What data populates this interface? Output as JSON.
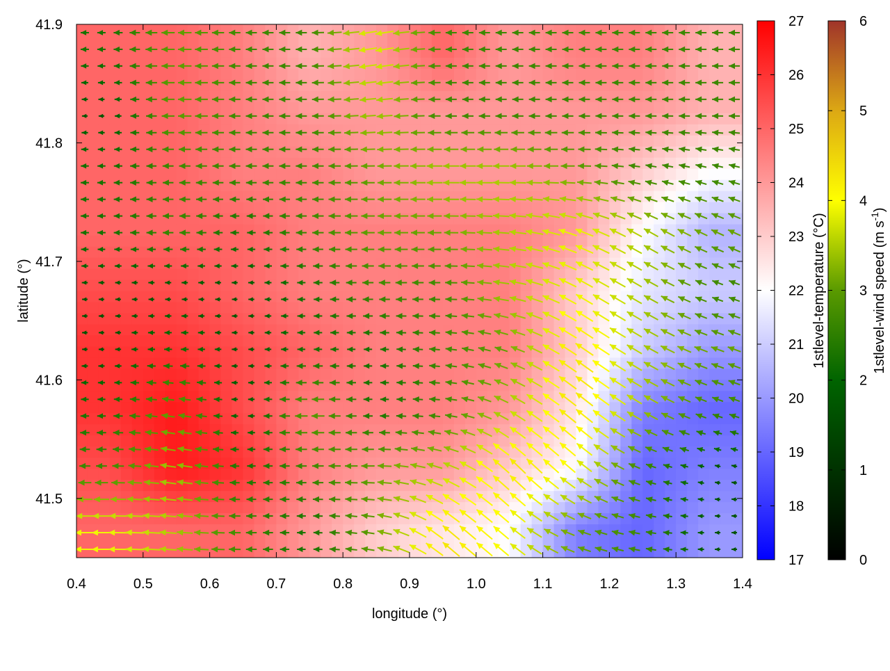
{
  "chart_data": {
    "type": "heatmap",
    "xlabel": "longitude (°)",
    "ylabel": "latitude (°)",
    "xlim": [
      0.4,
      1.4
    ],
    "ylim": [
      41.45,
      41.9
    ],
    "xticks": [
      "0.4",
      "0.5",
      "0.6",
      "0.7",
      "0.8",
      "0.9",
      "1.0",
      "1.1",
      "1.2",
      "1.3",
      "1.4"
    ],
    "yticks": [
      "41.5",
      "41.6",
      "41.7",
      "41.8",
      "41.9"
    ],
    "grid_lon": [
      0.45,
      0.55,
      0.65,
      0.75,
      0.85,
      0.95,
      1.05,
      1.15,
      1.25,
      1.35
    ],
    "grid_lat": [
      41.875,
      41.825,
      41.775,
      41.725,
      41.675,
      41.625,
      41.575,
      41.525,
      41.475
    ],
    "temperature": [
      [
        25,
        25,
        24.5,
        23.5,
        24,
        25,
        24,
        24.5,
        24.5,
        23.5
      ],
      [
        25,
        25,
        24.5,
        24,
        24,
        24,
        24,
        24,
        24,
        23.5
      ],
      [
        25,
        25,
        24.5,
        24.5,
        24,
        24,
        24,
        24,
        23,
        22
      ],
      [
        25,
        25,
        25,
        24.5,
        24.5,
        24.5,
        24.5,
        24,
        22,
        20.5
      ],
      [
        25.5,
        25.5,
        25,
        24.5,
        24.5,
        24.5,
        24.5,
        23,
        21.5,
        21
      ],
      [
        26,
        26,
        25.5,
        25,
        24.5,
        24.5,
        24.5,
        23,
        21,
        20
      ],
      [
        26,
        26.5,
        25.5,
        24.5,
        24.5,
        24.5,
        24,
        22.5,
        19.5,
        19
      ],
      [
        25.5,
        26.5,
        26,
        24.5,
        24,
        24,
        23,
        22,
        19,
        19.5
      ],
      [
        25,
        25,
        25,
        24,
        23,
        22.5,
        22,
        19.5,
        19,
        20
      ]
    ],
    "wind_speed": [
      [
        1.5,
        2.5,
        2,
        2,
        3.5,
        2,
        2,
        2,
        2,
        2
      ],
      [
        1,
        2.5,
        2,
        2,
        3,
        2,
        2,
        2,
        2,
        2
      ],
      [
        1.5,
        2,
        2,
        2,
        2.5,
        3,
        3,
        2.5,
        2,
        2
      ],
      [
        1.5,
        2,
        1.5,
        2,
        2.5,
        2.5,
        3,
        3.5,
        3,
        2.5
      ],
      [
        1,
        1,
        1,
        1.5,
        2,
        2,
        3,
        3.5,
        3,
        2
      ],
      [
        1,
        1.5,
        1,
        1.5,
        1.5,
        2,
        2.5,
        4,
        3,
        2.5
      ],
      [
        1.5,
        2.5,
        1,
        2.5,
        1.5,
        2,
        3,
        4,
        3,
        2
      ],
      [
        2,
        3,
        1.5,
        2,
        2.5,
        3,
        4,
        3.5,
        2,
        1
      ],
      [
        3.5,
        3,
        2,
        1.5,
        2.5,
        4,
        3.5,
        2.5,
        2,
        1
      ]
    ],
    "wind_direction_deg": [
      [
        180,
        180,
        180,
        180,
        190,
        180,
        180,
        180,
        180,
        180
      ],
      [
        180,
        180,
        180,
        180,
        185,
        180,
        180,
        180,
        180,
        180
      ],
      [
        180,
        180,
        180,
        180,
        180,
        180,
        180,
        180,
        170,
        165
      ],
      [
        180,
        180,
        180,
        180,
        180,
        180,
        175,
        160,
        150,
        155
      ],
      [
        180,
        180,
        180,
        180,
        180,
        180,
        170,
        150,
        150,
        160
      ],
      [
        180,
        180,
        180,
        180,
        180,
        175,
        160,
        145,
        150,
        160
      ],
      [
        180,
        170,
        180,
        180,
        180,
        175,
        150,
        140,
        150,
        160
      ],
      [
        180,
        170,
        180,
        180,
        180,
        160,
        135,
        140,
        160,
        170
      ],
      [
        180,
        175,
        180,
        180,
        170,
        140,
        140,
        160,
        170,
        180
      ]
    ],
    "colorbars": [
      {
        "label": "1stlevel-temperature (°C)",
        "range": [
          17,
          27
        ],
        "ticks": [
          "17",
          "18",
          "19",
          "20",
          "21",
          "22",
          "23",
          "24",
          "25",
          "26",
          "27"
        ],
        "colors": [
          "#0000ff",
          "#ffffff",
          "#ff0000"
        ]
      },
      {
        "label_main": "1stlevel-wind speed (m s",
        "label_sup": "-1",
        "label_end": ")",
        "range": [
          0,
          6
        ],
        "ticks": [
          "0",
          "1",
          "2",
          "3",
          "4",
          "5",
          "6"
        ],
        "colors": [
          "#000000",
          "#006400",
          "#5a9a00",
          "#ffff00",
          "#dca814",
          "#a0342a"
        ]
      }
    ]
  }
}
